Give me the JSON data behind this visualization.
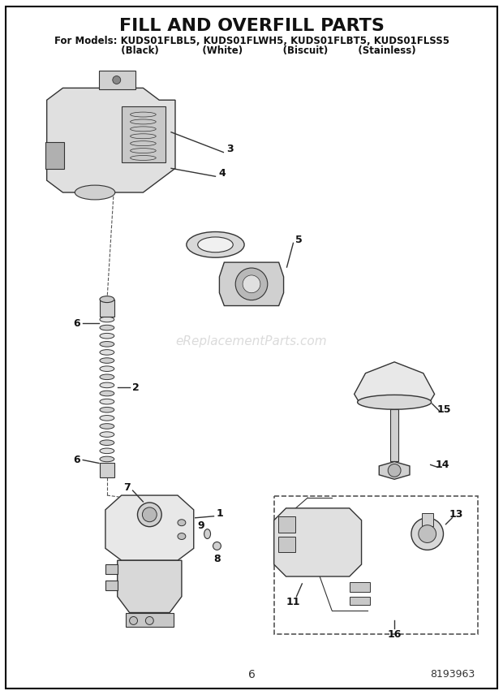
{
  "title": "FILL AND OVERFILL PARTS",
  "subtitle_line1": "For Models: KUDS01FLBL5, KUDS01FLWH5, KUDS01FLBT5, KUDS01FLSS5",
  "subtitle_line2": "          (Black)             (White)            (Biscuit)         (Stainless)",
  "page_number": "6",
  "part_number": "8193963",
  "watermark": "eReplacementParts.com",
  "background_color": "#ffffff",
  "line_color": "#333333",
  "title_fontsize": 16,
  "subtitle_fontsize": 8.5,
  "watermark_color": "#cccccc",
  "border_color": "#000000"
}
